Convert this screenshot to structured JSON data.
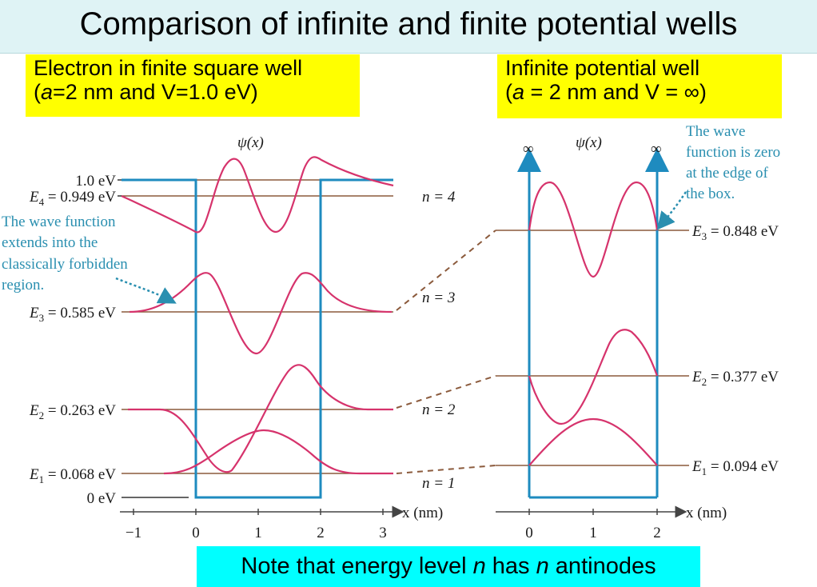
{
  "title": "Comparison of infinite and finite potential wells",
  "finite_label": {
    "line1": "Electron in finite square well",
    "line2_a": "a",
    "line2_rest": "=2 nm and V=1.0 eV)",
    "line2_open": "("
  },
  "infinite_label": {
    "line1": "Infinite potential well",
    "line2_open": "(",
    "line2_a": "a",
    "line2_rest": " = 2 nm  and  V = ∞)"
  },
  "note": {
    "part1": "Note that energy level ",
    "n1": "n",
    "part2": " has ",
    "n2": "n",
    "part3": " antinodes"
  },
  "finite_diagram": {
    "psi_label": "ψ(x)",
    "energy_labels": {
      "v_top": "1.0 eV",
      "e4": "E4 = 0.949 eV",
      "e3": "E3 = 0.585 eV",
      "e2": "E2 = 0.263 eV",
      "e1": "E1 = 0.068 eV",
      "zero": "0 eV"
    },
    "n_labels": [
      "n = 4",
      "n = 3",
      "n = 2",
      "n = 1"
    ],
    "annotation": [
      "The wave function",
      "extends into the",
      "classically forbidden",
      "region."
    ],
    "x_axis_label": "x (nm)",
    "x_ticks": [
      "−1",
      "0",
      "1",
      "2",
      "3"
    ],
    "levels_eV": [
      0.068,
      0.263,
      0.585,
      0.949
    ],
    "well_depth_eV": 1.0,
    "well_width_nm": 2
  },
  "infinite_diagram": {
    "psi_label": "ψ(x)",
    "infinity_left": "∞",
    "infinity_right": "∞",
    "energy_labels": {
      "e3": "E3 = 0.848 eV",
      "e2": "E2 = 0.377 eV",
      "e1": "E1 = 0.094 eV"
    },
    "annotation": [
      "The wave",
      "function is zero",
      "at the edge of",
      "the box."
    ],
    "x_axis_label": "x (nm)",
    "x_ticks": [
      "0",
      "1",
      "2"
    ],
    "levels_eV": [
      0.094,
      0.377,
      0.848
    ],
    "well_width_nm": 2
  },
  "colors": {
    "well": "#1e8bbf",
    "level": "#8b5a3c",
    "wave": "#d6336c",
    "annotation": "#2a8fb0",
    "title_bg": "#dff3f5",
    "label_bg": "#ffff00",
    "note_bg": "#00ffff"
  }
}
